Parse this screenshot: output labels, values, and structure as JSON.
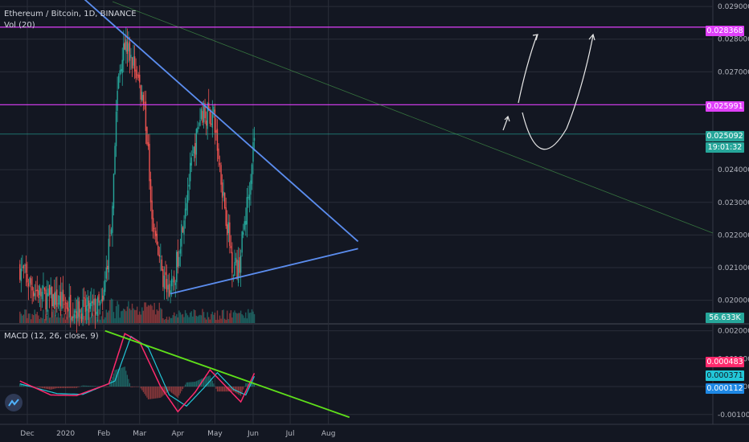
{
  "header": {
    "symbol": "Ethereum / Bitcoin, 1D, BINANCE",
    "volume_label": "Vol (20)",
    "macd_label": "MACD (12, 26, close, 9)"
  },
  "colors": {
    "background": "#131722",
    "grid": "#2a2e39",
    "up": "#26a69a",
    "down": "#ef5350",
    "resistance": "#e040fb",
    "trendline": "#5b8def",
    "macd_trend": "#5fe01a",
    "macd_line": "#ff2a6d",
    "signal_line": "#22c7d8",
    "projection": "#e8e8e8"
  },
  "badges": {
    "resistance_high": "0.028368",
    "resistance_low": "0.025991",
    "last_price": "0.025092",
    "countdown": "19:01:32",
    "volume": "56.633K",
    "macd_value": "0.000483",
    "signal_value": "0.000371",
    "hist_value": "0.000112"
  },
  "chart_data": [
    {
      "type": "candlestick",
      "title": "Ethereum / Bitcoin, 1D, BINANCE",
      "x_tick_labels": [
        "Dec",
        "2020",
        "Feb",
        "Mar",
        "Apr",
        "May",
        "Jun",
        "Jul",
        "Aug"
      ],
      "y_tick_labels": [
        "0.029000",
        "0.028000",
        "0.027000",
        "0.024000",
        "0.023000",
        "0.022000",
        "0.021000",
        "0.020000"
      ],
      "ylim": [
        0.0193,
        0.0292
      ],
      "grid": true,
      "close_path": [
        [
          "2019-11-25",
          0.021
        ],
        [
          "2019-12-05",
          0.0204
        ],
        [
          "2019-12-15",
          0.0201
        ],
        [
          "2019-12-24",
          0.02
        ],
        [
          "2020-01-01",
          0.0199
        ],
        [
          "2020-01-15",
          0.0197
        ],
        [
          "2020-01-31",
          0.0198
        ],
        [
          "2020-02-07",
          0.0224
        ],
        [
          "2020-02-12",
          0.0265
        ],
        [
          "2020-02-17",
          0.028
        ],
        [
          "2020-02-27",
          0.027
        ],
        [
          "2020-03-05",
          0.026
        ],
        [
          "2020-03-12",
          0.0223
        ],
        [
          "2020-03-20",
          0.0206
        ],
        [
          "2020-03-28",
          0.0203
        ],
        [
          "2020-04-07",
          0.023
        ],
        [
          "2020-04-20",
          0.0258
        ],
        [
          "2020-04-30",
          0.0256
        ],
        [
          "2020-05-08",
          0.0232
        ],
        [
          "2020-05-15",
          0.0212
        ],
        [
          "2020-05-20",
          0.0209
        ],
        [
          "2020-05-28",
          0.0232
        ],
        [
          "2020-06-02",
          0.0251
        ]
      ],
      "horizontal_levels": [
        0.028368,
        0.025991,
        0.025092
      ],
      "trendlines": [
        {
          "from": [
            "2020-01-05",
            0.0296
          ],
          "to": [
            "2020-08-25",
            0.0218
          ]
        },
        {
          "from": [
            "2020-03-26",
            0.0202
          ],
          "to": [
            "2020-08-25",
            0.02158
          ]
        }
      ]
    },
    {
      "type": "bar",
      "title": "Vol (20)",
      "last_value": "56.633K"
    },
    {
      "type": "line",
      "title": "MACD (12, 26, close, 9)",
      "y_tick_labels": [
        "0.002000",
        "0.001000",
        "0.000000",
        "-0.001000"
      ],
      "ylim": [
        -0.00118,
        0.00222
      ],
      "macd_path": [
        [
          "2019-11-25",
          0.0002
        ],
        [
          "2019-12-20",
          -0.0003
        ],
        [
          "2020-01-10",
          -0.00032
        ],
        [
          "2020-02-05",
          0.0001
        ],
        [
          "2020-02-18",
          0.0019
        ],
        [
          "2020-03-01",
          0.0016
        ],
        [
          "2020-03-18",
          0.0
        ],
        [
          "2020-04-01",
          -0.0009
        ],
        [
          "2020-04-15",
          -0.0002
        ],
        [
          "2020-04-27",
          0.0006
        ],
        [
          "2020-05-10",
          0.0
        ],
        [
          "2020-05-22",
          -0.00055
        ],
        [
          "2020-06-02",
          0.00048
        ]
      ],
      "signal_path": [
        [
          "2019-11-25",
          0.0001
        ],
        [
          "2019-12-25",
          -0.00025
        ],
        [
          "2020-01-15",
          -0.00028
        ],
        [
          "2020-02-10",
          0.0002
        ],
        [
          "2020-02-23",
          0.0018
        ],
        [
          "2020-03-08",
          0.0014
        ],
        [
          "2020-03-25",
          -0.0003
        ],
        [
          "2020-04-08",
          -0.0007
        ],
        [
          "2020-04-22",
          -5e-05
        ],
        [
          "2020-05-03",
          0.0005
        ],
        [
          "2020-05-16",
          -0.0001
        ],
        [
          "2020-05-26",
          -0.0003
        ],
        [
          "2020-06-02",
          0.00037
        ]
      ],
      "trendline": {
        "from": [
          "2020-02-02",
          0.002
        ],
        "to": [
          "2020-08-18",
          -0.0011
        ]
      }
    }
  ]
}
